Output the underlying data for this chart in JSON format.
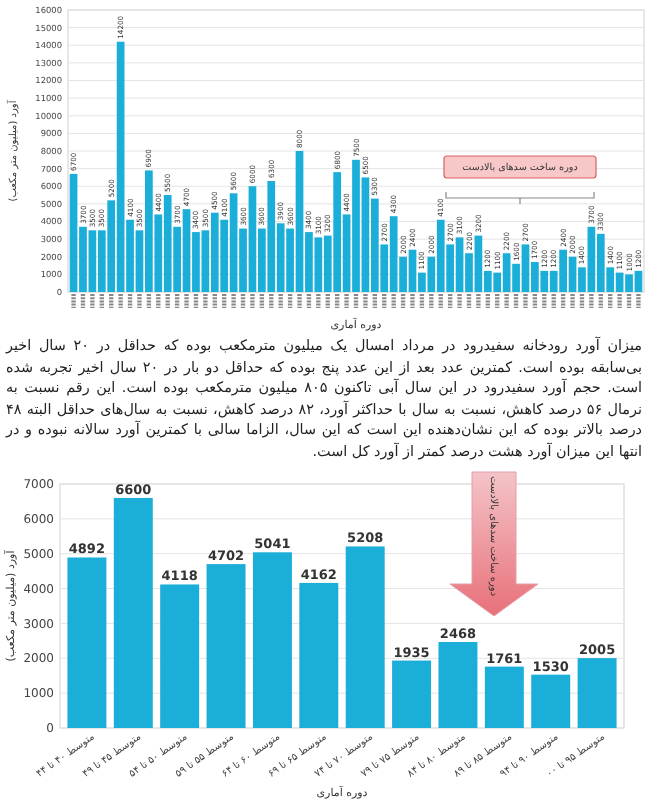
{
  "chart_data": [
    {
      "type": "bar",
      "ylabel": "آورد (میلیون متر مکعب)",
      "xlabel": "دوره آماری",
      "categories": [
        null,
        null,
        null,
        null,
        null,
        null,
        null,
        null,
        null,
        null,
        null,
        null,
        null,
        null,
        null,
        null,
        null,
        null,
        null,
        null,
        null,
        null,
        null,
        null,
        null,
        null,
        null,
        null,
        null,
        null,
        null,
        null,
        null,
        null,
        null,
        null,
        null,
        null,
        null,
        null,
        null,
        null,
        null,
        null,
        null,
        null,
        null,
        null,
        null,
        null,
        null,
        null,
        null,
        null,
        null,
        null,
        null,
        null,
        null,
        null,
        null
      ],
      "series": [
        {
          "color": "#1aaed8",
          "values": [
            6700,
            3700,
            3500,
            3500,
            5200,
            14200,
            4100,
            3500,
            6900,
            4400,
            5500,
            3700,
            4700,
            3400,
            3500,
            4500,
            4100,
            5600,
            3600,
            6000,
            3600,
            6300,
            3900,
            3600,
            8000,
            3400,
            3100,
            3200,
            6800,
            4400,
            7500,
            6500,
            5300,
            2700,
            4300,
            2000,
            2400,
            1100,
            2000,
            4100,
            2700,
            3100,
            2200,
            3200,
            1200,
            1100,
            2200,
            1600,
            2700,
            1700,
            1200,
            1200,
            2400,
            2000,
            1400,
            3700,
            3300,
            1400,
            1100,
            1000,
            1200
          ]
        }
      ],
      "ylim": [
        0,
        16000
      ],
      "yticks": [
        0,
        1000,
        2000,
        3000,
        4000,
        5000,
        6000,
        7000,
        8000,
        9000,
        10000,
        11000,
        12000,
        13000,
        14000,
        15000,
        16000
      ],
      "grid": "y",
      "data_labels": true,
      "annotations": [
        "دوره ساخت سدهای بالادست",
        "میزان آورد رودخانه سفیدرود در مرداد امسال یک میلیون مترمکعب بوده که حداقل در ۲۰ سال اخیر بی‌سابقه بوده است. کمترین عدد بعد از این عدد پنج بوده که حداقل دو بار در ۲۰ سال اخیر تجربه شده است. حجم آورد سفیدرود در این سال آبی تاکنون ۸۰۵ میلیون مترمکعب بوده است. این رقم نسبت به نرمال ۵۶ درصد کاهش، نسبت به سال با حداکثر آورد، ۸۲ درصد کاهش، نسبت به سال‌های حداقل البته ۴۸ درصد بالاتر بوده که این نشان‌دهنده این است که این سال، الزاما سالی با کمترین آورد سالانه نبوده و در انتها این میزان آورد هشت درصد کمتر از آورد کل است."
      ]
    },
    {
      "type": "bar",
      "ylabel": "آورد (میلیون متر مکعب)",
      "xlabel": "دوره آماری",
      "categories": [
        "متوسط ۴۰ تا ۴۴",
        "متوسط ۴۵ تا ۴۹",
        "متوسط ۵۰ تا ۵۴",
        "متوسط ۵۵ تا ۵۹",
        "متوسط ۶۰ تا ۶۴",
        "متوسط ۶۵ تا ۶۹",
        "متوسط ۷۰ تا ۷۴",
        "متوسط ۷۵ تا ۷۹",
        "متوسط ۸۰ تا ۸۴",
        "متوسط ۸۵ تا ۸۹",
        "متوسط ۹۰ تا ۹۴",
        "متوسط ۹۵ تا ۰۰"
      ],
      "series": [
        {
          "color": "#1aaed8",
          "values": [
            4892,
            6600,
            4118,
            4702,
            5041,
            4162,
            5208,
            1935,
            2468,
            1761,
            1530,
            2005
          ]
        }
      ],
      "ylim": [
        0,
        7000
      ],
      "yticks": [
        0,
        1000,
        2000,
        3000,
        4000,
        5000,
        6000,
        7000
      ],
      "grid": "y",
      "data_labels": true,
      "annotations": [
        "دوره ساخت سدهای بالادست"
      ]
    }
  ]
}
